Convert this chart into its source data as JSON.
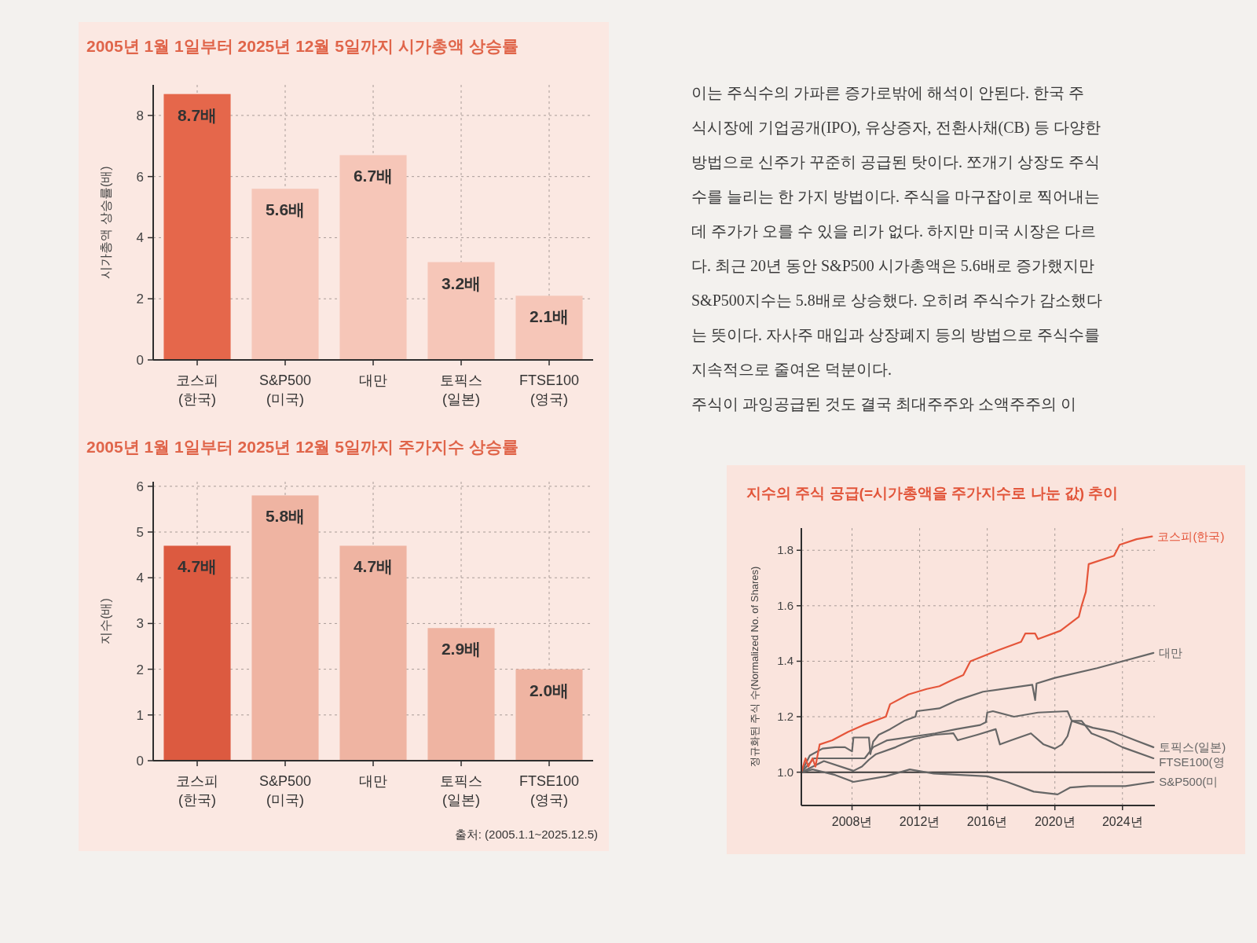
{
  "chart_data": [
    {
      "type": "bar",
      "title": "2005년 1월 1일부터 2025년 12월 5일까지 시가총액 상승률",
      "ylabel": "시가총액 상승률(배)",
      "categories": [
        "코스피\n(한국)",
        "S&P500\n(미국)",
        "대만",
        "토픽스\n(일본)",
        "FTSE100\n(영국)"
      ],
      "values": [
        8.7,
        5.6,
        6.7,
        3.2,
        2.1
      ],
      "colors": [
        "#e5674b",
        "#f6c6b8",
        "#f6c6b8",
        "#f6c6b8",
        "#f6c6b8"
      ],
      "value_labels": [
        "8.7배",
        "5.6배",
        "6.7배",
        "3.2배",
        "2.1배"
      ],
      "ylim": [
        0,
        9
      ],
      "yticks": [
        0,
        2,
        4,
        6,
        8
      ],
      "grid": true
    },
    {
      "type": "bar",
      "title": "2005년 1월 1일부터 2025년 12월 5일까지 주가지수 상승률",
      "ylabel": "지수(배)",
      "categories": [
        "코스피\n(한국)",
        "S&P500\n(미국)",
        "대만",
        "토픽스\n(일본)",
        "FTSE100\n(영국)"
      ],
      "values": [
        4.7,
        5.8,
        4.7,
        2.9,
        2.0
      ],
      "colors": [
        "#dc5a40",
        "#efb4a2",
        "#efb4a2",
        "#efb4a2",
        "#efb4a2"
      ],
      "value_labels": [
        "4.7배",
        "5.8배",
        "4.7배",
        "2.9배",
        "2.0배"
      ],
      "ylim": [
        0,
        6.1
      ],
      "yticks": [
        0,
        1,
        2,
        3,
        4,
        5,
        6
      ],
      "grid": true,
      "annotations": [
        "출처: (2005.1.1~2025.12.5)"
      ]
    },
    {
      "type": "other",
      "annotations": [
        "이는 주식수의 가파른 증가로밖에 해석이 안된다. 한국 주",
        "식시장에 기업공개(IPO), 유상증자, 전환사채(CB) 등 다양한",
        "방법으로 신주가 꾸준히 공급된 탓이다. 쪼개기 상장도 주식",
        "수를 늘리는 한 가지 방법이다. 주식을 마구잡이로 찍어내는",
        "데 주가가 오를 수 있을 리가 없다. 하지만 미국 시장은 다르",
        "다. 최근 20년 동안 S&P500 시가총액은 5.6배로 증가했지만",
        "S&P500지수는 5.8배로 상승했다. 오히려 주식수가 감소했다",
        "는 뜻이다. 자사주 매입과 상장폐지 등의 방법으로 주식수를",
        "지속적으로 줄여온 덕분이다.",
        "주식이 과잉공급된 것도 결국 최대주주와 소액주주의 이"
      ]
    },
    {
      "type": "line",
      "title": "지수의 주식 공급(=시가총액을 주가지수로 나눈 값) 추이",
      "ylabel": "정규화된 주식 수(Normalized No. of Shares)",
      "xlim": [
        "2005-01",
        "2025-12"
      ],
      "xticks": [
        {
          "value": "2008-01",
          "label": "2008년"
        },
        {
          "value": "2012-01",
          "label": "2012년"
        },
        {
          "value": "2016-01",
          "label": "2016년"
        },
        {
          "value": "2020-01",
          "label": "2020년"
        },
        {
          "value": "2024-01",
          "label": "2024년"
        }
      ],
      "ylim": [
        0.88,
        1.88
      ],
      "yticks": [
        {
          "value": 1,
          "label": "1.0"
        },
        1.2,
        1.4,
        1.6,
        1.8
      ],
      "grid": true,
      "ref_lines": [
        {
          "axis": "y",
          "value": 1,
          "color": "#3a3a3a"
        }
      ],
      "series": [
        {
          "name": "코스피(한국)",
          "color": "#e5553a",
          "x": [
            "2005-01",
            "2005-04",
            "2005-06",
            "2005-09",
            "2005-11",
            "2006-02",
            "2006-11",
            "2007-10",
            "2008-09",
            "2010-01",
            "2010-04",
            "2011-05",
            "2012-06",
            "2013-03",
            "2013-11",
            "2014-08",
            "2015-01",
            "2016-09",
            "2018-01",
            "2018-04",
            "2018-11",
            "2019-01",
            "2020-05",
            "2021-06",
            "2021-08",
            "2021-11",
            "2022-01",
            "2023-07",
            "2023-11",
            "2024-11",
            "2025-10"
          ],
          "values": [
            1.0,
            1.05,
            1.02,
            1.05,
            1.02,
            1.1,
            1.115,
            1.145,
            1.17,
            1.2,
            1.245,
            1.28,
            1.3,
            1.31,
            1.33,
            1.35,
            1.4,
            1.44,
            1.47,
            1.5,
            1.5,
            1.48,
            1.51,
            1.56,
            1.6,
            1.65,
            1.75,
            1.78,
            1.82,
            1.84,
            1.85
          ]
        },
        {
          "name": "대만",
          "color": "#666666",
          "x": [
            "2005-01",
            "2005-07",
            "2006-04",
            "2007-01",
            "2007-08",
            "2008-01",
            "2008-02",
            "2009-01",
            "2009-02",
            "2009-04",
            "2009-08",
            "2010-04",
            "2011-02",
            "2011-10",
            "2011-11",
            "2013-03",
            "2014-04",
            "2015-10",
            "2018-09",
            "2018-11",
            "2018-12",
            "2020-01",
            "2022-07",
            "2024-01",
            "2025-11"
          ],
          "values": [
            1.0,
            1.06,
            1.085,
            1.09,
            1.09,
            1.075,
            1.125,
            1.125,
            1.065,
            1.11,
            1.135,
            1.155,
            1.185,
            1.2,
            1.22,
            1.23,
            1.26,
            1.29,
            1.315,
            1.26,
            1.32,
            1.34,
            1.375,
            1.4,
            1.43
          ]
        },
        {
          "name": "토픽스(일본)",
          "color": "#666666",
          "x": [
            "2005-01",
            "2005-10",
            "2007-09",
            "2008-10",
            "2009-04",
            "2010-02",
            "2012-12",
            "2014-03",
            "2015-08",
            "2015-12",
            "2016-01",
            "2016-05",
            "2017-08",
            "2019-01",
            "2020-10",
            "2021-01",
            "2022-04",
            "2023-07",
            "2024-10",
            "2025-11"
          ],
          "values": [
            1.0,
            1.05,
            1.05,
            1.05,
            1.09,
            1.115,
            1.14,
            1.155,
            1.17,
            1.18,
            1.215,
            1.22,
            1.2,
            1.215,
            1.22,
            1.185,
            1.16,
            1.145,
            1.115,
            1.09
          ]
        },
        {
          "name": "FTSE100(영",
          "color": "#666666",
          "x": [
            "2005-01",
            "2006-05",
            "2008-02",
            "2008-08",
            "2009-01",
            "2009-06",
            "2010-08",
            "2011-09",
            "2012-12",
            "2014-01",
            "2014-04",
            "2015-06",
            "2016-07",
            "2016-10",
            "2017-06",
            "2018-08",
            "2019-05",
            "2020-01",
            "2020-06",
            "2020-10",
            "2021-01",
            "2021-08",
            "2022-03",
            "2023-01",
            "2024-01",
            "2025-11"
          ],
          "values": [
            1.0,
            1.04,
            1.005,
            1.02,
            1.045,
            1.065,
            1.09,
            1.12,
            1.135,
            1.14,
            1.115,
            1.135,
            1.155,
            1.1,
            1.115,
            1.14,
            1.1,
            1.085,
            1.1,
            1.13,
            1.185,
            1.185,
            1.14,
            1.12,
            1.09,
            1.05
          ]
        },
        {
          "name": "S&P500(미",
          "color": "#666666",
          "x": [
            "2005-01",
            "2005-09",
            "2007-01",
            "2008-02",
            "2010-01",
            "2011-06",
            "2012-11",
            "2016-01",
            "2017-03",
            "2018-10",
            "2020-03",
            "2020-12",
            "2022-01",
            "2024-03",
            "2025-11"
          ],
          "values": [
            1.0,
            1.01,
            0.99,
            0.965,
            0.985,
            1.01,
            0.995,
            0.985,
            0.965,
            0.93,
            0.92,
            0.945,
            0.95,
            0.95,
            0.965
          ]
        }
      ]
    }
  ]
}
